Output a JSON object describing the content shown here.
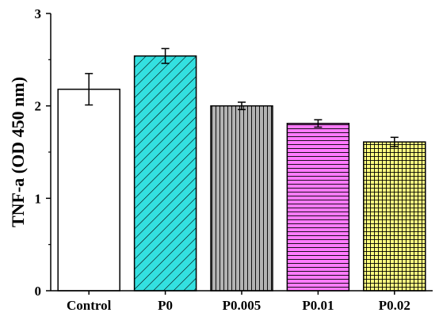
{
  "chart_data": {
    "type": "bar",
    "title": "",
    "xlabel": "",
    "ylabel": "TNF-a (OD 450 nm)",
    "ylim": [
      0,
      3
    ],
    "yticks": [
      0,
      1,
      2,
      3
    ],
    "categories": [
      "Control",
      "P0",
      "P0.005",
      "P0.01",
      "P0.02"
    ],
    "values": [
      2.18,
      2.54,
      2.0,
      1.81,
      1.61
    ],
    "errors": [
      0.17,
      0.08,
      0.04,
      0.04,
      0.05
    ],
    "fills": [
      "#ffffff",
      "#33e0e0",
      "#b3b3b3",
      "#ff7bff",
      "#ffff80"
    ],
    "patterns": [
      "none",
      "diagonal",
      "vertical",
      "horizontal",
      "grid"
    ],
    "grid": false
  }
}
